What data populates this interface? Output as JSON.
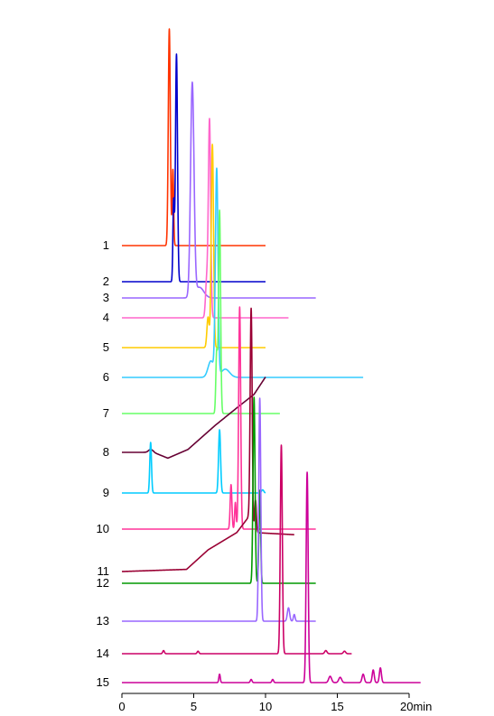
{
  "chart_data": {
    "type": "line",
    "title": "",
    "xlabel": "",
    "ylabel": "",
    "xlim": [
      0,
      20
    ],
    "x_unit_label": "min",
    "xticks": [
      0,
      5,
      10,
      15,
      20
    ],
    "xtick_labels": [
      "0",
      "5",
      "10",
      "15",
      "20min"
    ],
    "grid": false,
    "legend": "none",
    "series": [
      {
        "label": "1",
        "color": "#ff3300",
        "x_start": 0.0,
        "x_end": 10.0,
        "peaks": [
          {
            "x": 3.3,
            "height": 1.0,
            "width": 0.07
          },
          {
            "x": 3.55,
            "height": 0.35,
            "width": 0.05
          }
        ],
        "drift": []
      },
      {
        "label": "2",
        "color": "#0000cc",
        "x_start": 0.0,
        "x_end": 10.0,
        "peaks": [
          {
            "x": 3.8,
            "height": 1.0,
            "width": 0.07
          },
          {
            "x": 3.6,
            "height": 0.35,
            "width": 0.05
          }
        ],
        "drift": []
      },
      {
        "label": "3",
        "color": "#9966ff",
        "x_start": 0.0,
        "x_end": 13.5,
        "peaks": [
          {
            "x": 4.9,
            "height": 1.0,
            "width": 0.12
          },
          {
            "x": 5.4,
            "height": 0.05,
            "width": 0.3
          }
        ],
        "drift": []
      },
      {
        "label": "4",
        "color": "#ff66cc",
        "x_start": 0.0,
        "x_end": 11.6,
        "peaks": [
          {
            "x": 6.1,
            "height": 1.0,
            "width": 0.08
          },
          {
            "x": 5.9,
            "height": 0.18,
            "width": 0.08
          }
        ],
        "drift": []
      },
      {
        "label": "5",
        "color": "#ffcc00",
        "x_start": 0.0,
        "x_end": 10.0,
        "peaks": [
          {
            "x": 6.3,
            "height": 1.0,
            "width": 0.08
          },
          {
            "x": 6.0,
            "height": 0.15,
            "width": 0.08
          }
        ],
        "drift": []
      },
      {
        "label": "6",
        "color": "#33ccff",
        "x_start": 0.0,
        "x_end": 16.8,
        "peaks": [
          {
            "x": 6.6,
            "height": 1.0,
            "width": 0.09
          },
          {
            "x": 6.2,
            "height": 0.08,
            "width": 0.2
          },
          {
            "x": 7.2,
            "height": 0.04,
            "width": 0.3
          }
        ],
        "drift": []
      },
      {
        "label": "7",
        "color": "#66ff66",
        "x_start": 0.0,
        "x_end": 11.0,
        "peaks": [
          {
            "x": 6.8,
            "height": 1.0,
            "width": 0.07
          },
          {
            "x": 6.6,
            "height": 0.3,
            "width": 0.06
          }
        ],
        "drift": []
      },
      {
        "label": "8",
        "color": "#660033",
        "x_start": 0.0,
        "x_end": 10.0,
        "peaks": [
          {
            "x": 2.0,
            "height": 0.03,
            "width": 0.15
          }
        ],
        "drift": [
          [
            0,
            0
          ],
          [
            2.2,
            0
          ],
          [
            3.2,
            -0.06
          ],
          [
            4.6,
            0.03
          ],
          [
            6.5,
            0.28
          ],
          [
            8.0,
            0.46
          ],
          [
            9.2,
            0.6
          ],
          [
            10.0,
            0.78
          ]
        ]
      },
      {
        "label": "9",
        "color": "#00ccff",
        "x_start": 0.0,
        "x_end": 10.0,
        "peaks": [
          {
            "x": 2.0,
            "height": 0.8,
            "width": 0.06
          },
          {
            "x": 6.8,
            "height": 1.0,
            "width": 0.07
          },
          {
            "x": 9.8,
            "height": 0.05,
            "width": 0.08
          }
        ],
        "drift": []
      },
      {
        "label": "10",
        "color": "#ff3399",
        "x_start": 0.0,
        "x_end": 13.5,
        "peaks": [
          {
            "x": 8.2,
            "height": 1.0,
            "width": 0.07
          },
          {
            "x": 7.6,
            "height": 0.2,
            "width": 0.06
          },
          {
            "x": 7.9,
            "height": 0.12,
            "width": 0.05
          }
        ],
        "drift": []
      },
      {
        "label": "11",
        "color": "#990033",
        "x_start": 0.0,
        "x_end": 12.0,
        "peaks": [
          {
            "x": 9.0,
            "height": 1.0,
            "width": 0.07
          },
          {
            "x": 9.3,
            "height": 0.15,
            "width": 0.06
          }
        ],
        "drift": [
          [
            0,
            0
          ],
          [
            4.5,
            0.01
          ],
          [
            6.0,
            0.1
          ],
          [
            8.0,
            0.18
          ],
          [
            8.8,
            0.25
          ],
          [
            9.2,
            0.18
          ],
          [
            12.0,
            0.17
          ]
        ]
      },
      {
        "label": "12",
        "color": "#009900",
        "x_start": 0.0,
        "x_end": 13.5,
        "peaks": [
          {
            "x": 9.2,
            "height": 1.0,
            "width": 0.07
          },
          {
            "x": 9.6,
            "height": 0.5,
            "width": 0.06
          }
        ],
        "drift": []
      },
      {
        "label": "13",
        "color": "#9966ff",
        "x_start": 0.0,
        "x_end": 13.5,
        "peaks": [
          {
            "x": 9.6,
            "height": 1.0,
            "width": 0.07
          },
          {
            "x": 11.6,
            "height": 0.06,
            "width": 0.08
          },
          {
            "x": 12.0,
            "height": 0.03,
            "width": 0.06
          }
        ],
        "drift": []
      },
      {
        "label": "14",
        "color": "#cc0066",
        "x_start": 0.0,
        "x_end": 16.0,
        "peaks": [
          {
            "x": 11.1,
            "height": 1.0,
            "width": 0.07
          },
          {
            "x": 2.9,
            "height": 0.015,
            "width": 0.06
          },
          {
            "x": 5.3,
            "height": 0.012,
            "width": 0.06
          },
          {
            "x": 14.2,
            "height": 0.015,
            "width": 0.08
          },
          {
            "x": 15.5,
            "height": 0.012,
            "width": 0.08
          }
        ],
        "drift": []
      },
      {
        "label": "15",
        "color": "#cc0099",
        "x_start": 0.0,
        "x_end": 20.8,
        "peaks": [
          {
            "x": 12.9,
            "height": 1.0,
            "width": 0.07
          },
          {
            "x": 14.5,
            "height": 0.03,
            "width": 0.1
          },
          {
            "x": 15.2,
            "height": 0.025,
            "width": 0.1
          },
          {
            "x": 16.8,
            "height": 0.04,
            "width": 0.08
          },
          {
            "x": 17.5,
            "height": 0.06,
            "width": 0.07
          },
          {
            "x": 18.0,
            "height": 0.07,
            "width": 0.07
          },
          {
            "x": 6.8,
            "height": 0.04,
            "width": 0.05
          },
          {
            "x": 9.0,
            "height": 0.015,
            "width": 0.06
          },
          {
            "x": 10.5,
            "height": 0.015,
            "width": 0.06
          }
        ],
        "drift": []
      }
    ]
  }
}
